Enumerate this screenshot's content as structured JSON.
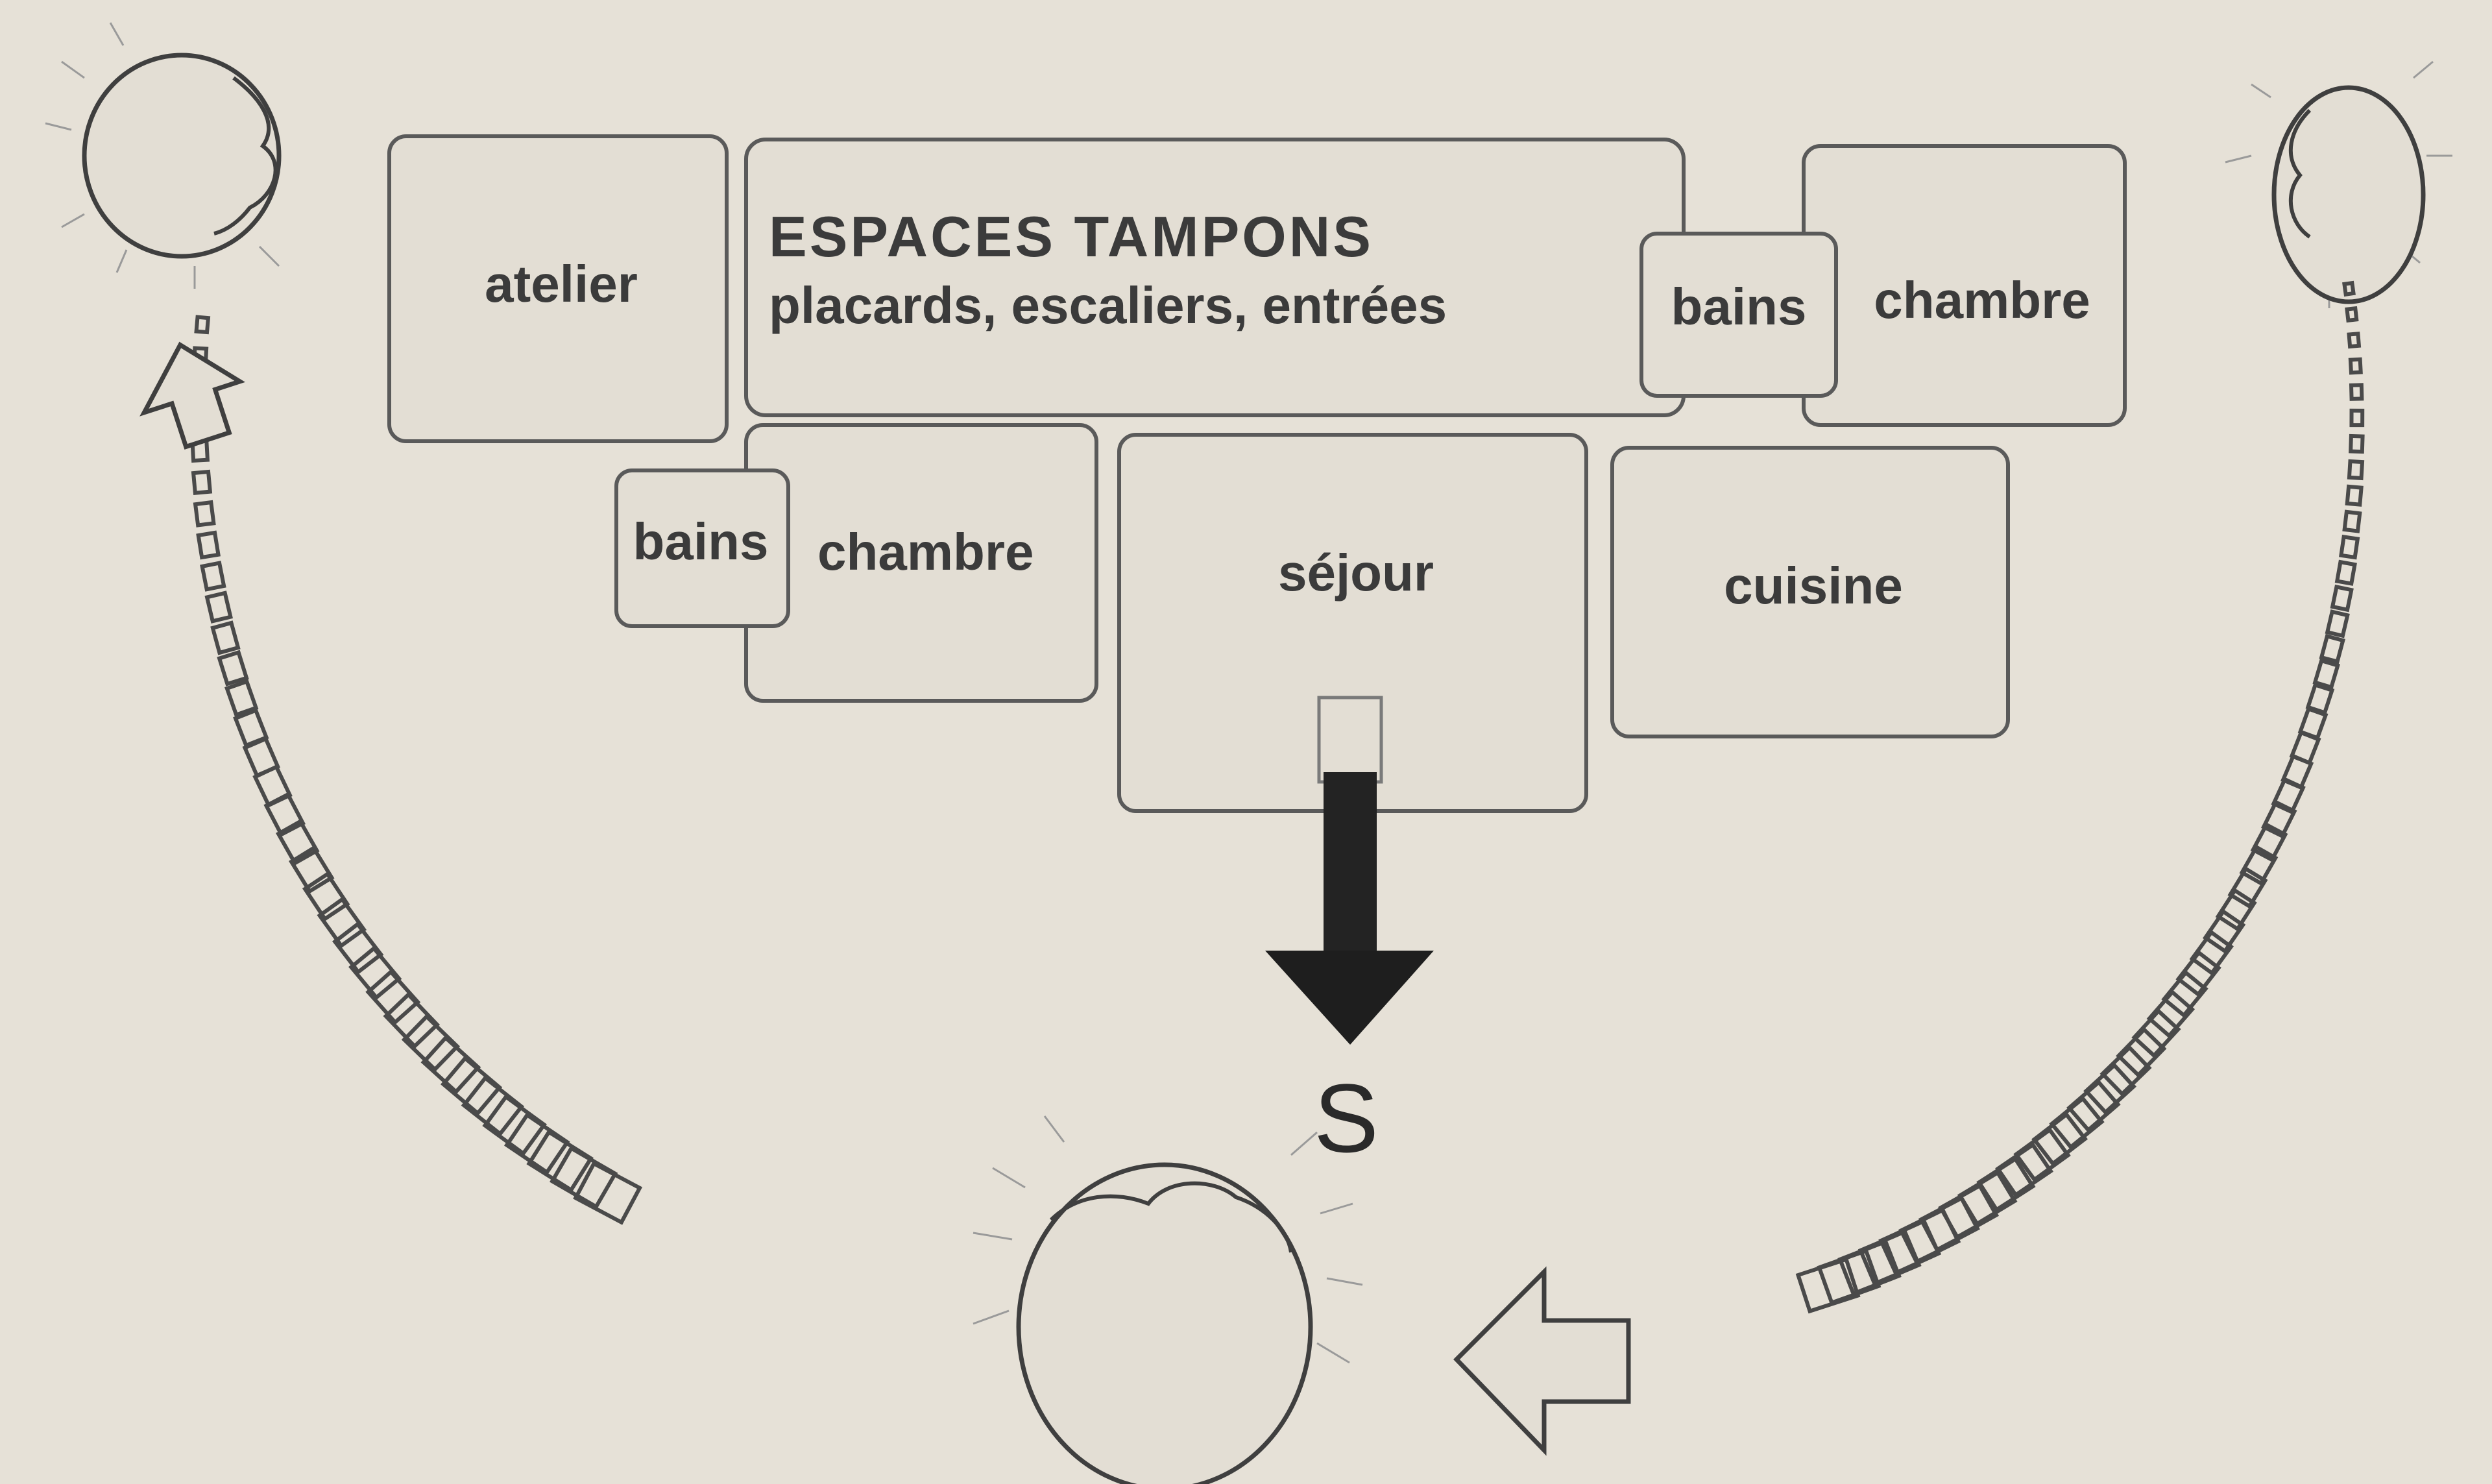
{
  "diagram": {
    "title_line1": "ESPACES TAMPONS",
    "title_line2": "placards, escaliers, entrées",
    "rooms": {
      "atelier": "atelier",
      "bains_top": "bains",
      "chambre_top": "chambre",
      "bains_bottom": "bains",
      "chambre_bottom": "chambre",
      "sejour": "séjour",
      "cuisine": "cuisine"
    },
    "south": "S"
  }
}
